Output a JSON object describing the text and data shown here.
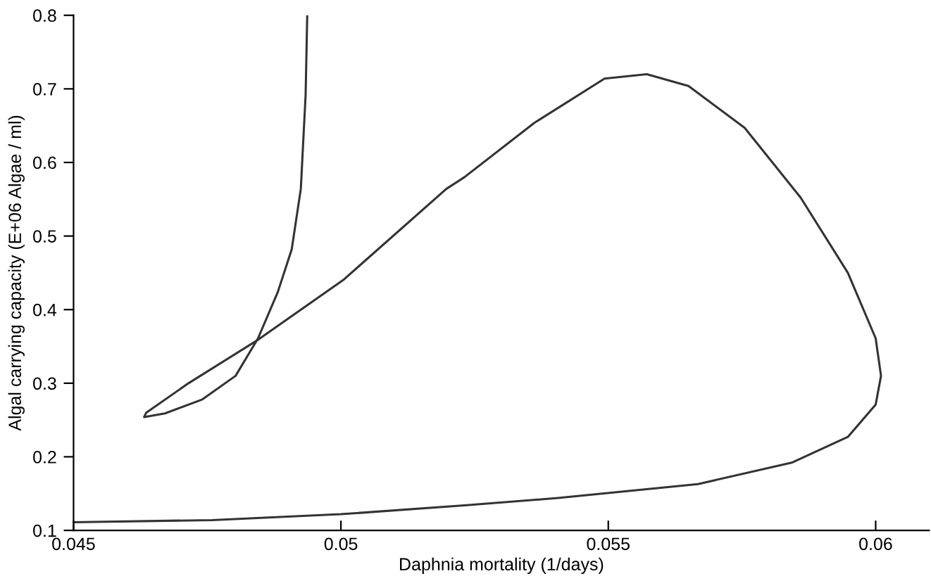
{
  "chart_data": {
    "type": "line",
    "xlabel": "Daphnia mortality (1/days)",
    "ylabel": "Algal carrying capacity (E+06 Algae / ml)",
    "xlim": [
      0.045,
      0.061
    ],
    "ylim": [
      0.1,
      0.8
    ],
    "xticks": [
      0.045,
      0.05,
      0.055,
      0.06
    ],
    "yticks": [
      0.1,
      0.2,
      0.3,
      0.4,
      0.5,
      0.6,
      0.7,
      0.8
    ],
    "grid": false,
    "marker": "none",
    "line_style": "solid",
    "series": [
      {
        "color": "#333333",
        "x": [
          0.04937,
          0.04934,
          0.04925,
          0.04908,
          0.04882,
          0.04845,
          0.04803,
          0.04741,
          0.04671,
          0.04632,
          0.04636,
          0.04715,
          0.04845,
          0.05004,
          0.05197,
          0.05231,
          0.05362,
          0.05493,
          0.05572,
          0.0565,
          0.05755,
          0.0586,
          0.05948,
          0.06,
          0.0601,
          0.06,
          0.05948,
          0.05843,
          0.05668,
          0.05406,
          0.05231,
          0.05,
          0.04759,
          0.045
        ],
        "values": [
          0.8,
          0.692,
          0.564,
          0.482,
          0.424,
          0.361,
          0.31,
          0.278,
          0.259,
          0.254,
          0.26,
          0.3,
          0.359,
          0.44,
          0.564,
          0.58,
          0.654,
          0.714,
          0.72,
          0.704,
          0.647,
          0.552,
          0.45,
          0.361,
          0.31,
          0.271,
          0.227,
          0.192,
          0.163,
          0.144,
          0.134,
          0.122,
          0.114,
          0.111
        ]
      }
    ]
  }
}
